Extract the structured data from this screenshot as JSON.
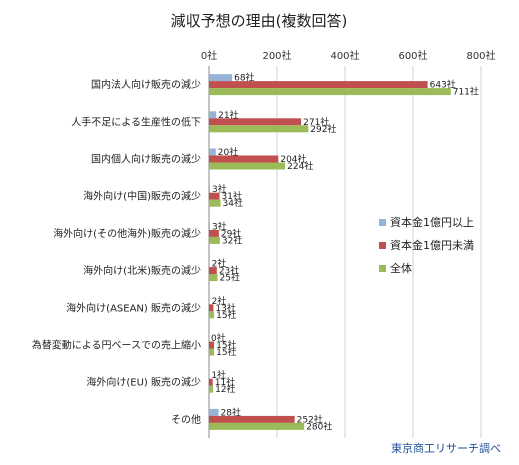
{
  "chart_data": {
    "type": "bar",
    "orientation": "horizontal",
    "title": "減収予想の理由(複数回答)",
    "source": "東京商工リサーチ調べ",
    "xlim": [
      0,
      800
    ],
    "ticks": [
      0,
      200,
      400,
      600,
      800
    ],
    "tick_suffix": "社",
    "grid": true,
    "legend_position": "right",
    "categories": [
      "国内法人向け販売の減少",
      "人手不足による生産性の低下",
      "国内個人向け販売の減少",
      "海外向け(中国)販売の減少",
      "海外向け(その他海外)販売の減少",
      "海外向け(北米)販売の減少",
      "海外向け(ASEAN) 販売の減少",
      "為替変動による円ベースでの売上縮小",
      "海外向け(EU) 販売の減少",
      "その他"
    ],
    "series": [
      {
        "name": "資本金1億円以上",
        "color": "#95b3d7",
        "values": [
          68,
          21,
          20,
          3,
          3,
          2,
          2,
          0,
          1,
          28
        ]
      },
      {
        "name": "資本金1億円未満",
        "color": "#c0504d",
        "values": [
          643,
          271,
          204,
          31,
          29,
          23,
          13,
          15,
          11,
          252
        ]
      },
      {
        "name": "全体",
        "color": "#9bbb59",
        "values": [
          711,
          292,
          224,
          34,
          32,
          25,
          15,
          15,
          12,
          280
        ]
      }
    ]
  }
}
